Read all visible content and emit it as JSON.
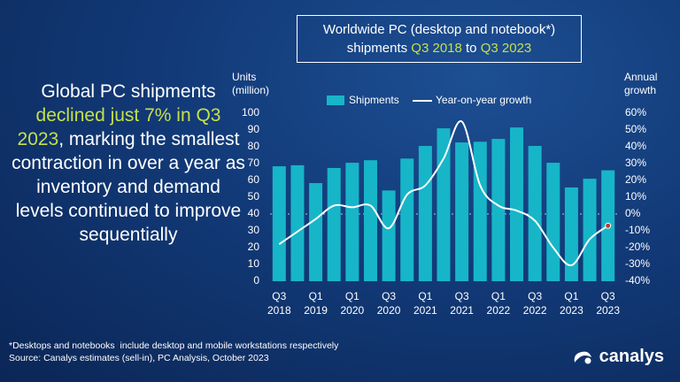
{
  "headline": {
    "parts": [
      "Global PC shipments ",
      "declined just 7% in Q3 2023",
      ", marking the smallest contraction in over a year as inventory and demand levels continued to improve sequentially"
    ]
  },
  "title_box": {
    "line1": "Worldwide PC (desktop and notebook*)",
    "line2_parts": [
      "shipments ",
      "Q3 2018",
      " to ",
      "Q3 2023"
    ]
  },
  "chart_data": {
    "type": "bar",
    "y_label": "Units\n(million)",
    "y2_label": "Annual\ngrowth",
    "categories": [
      "Q3\n2018",
      null,
      "Q1\n2019",
      null,
      "Q1\n2020",
      null,
      "Q3\n2020",
      null,
      "Q1\n2021",
      null,
      "Q3\n2021",
      null,
      "Q1\n2022",
      null,
      "Q3\n2022",
      null,
      "Q1\n2023",
      null,
      "Q3\n2023"
    ],
    "series": [
      {
        "name": "Shipments",
        "color": "#17b5c8",
        "values": [
          68.4,
          69,
          58.4,
          67.4,
          70.5,
          72,
          54,
          73,
          80.5,
          91,
          82.6,
          83,
          84.7,
          91.5,
          80.5,
          70.5,
          55.8,
          61,
          66
        ]
      },
      {
        "name": "Year-on-year growth",
        "type": "line",
        "axis": "y2",
        "color": "#ffffff",
        "values": [
          -18,
          -10.5,
          -3,
          5,
          4,
          5,
          -8.5,
          11.5,
          17,
          33,
          55,
          17,
          5,
          2,
          -4,
          -20,
          -30.5,
          -15,
          -7
        ]
      }
    ],
    "ylim": [
      0,
      100
    ],
    "yticks": [
      0,
      10,
      20,
      30,
      40,
      50,
      60,
      70,
      80,
      90,
      100
    ],
    "y2lim": [
      -40,
      60
    ],
    "y2ticks": [
      {
        "value": -40,
        "label": "-40%"
      },
      {
        "value": -30,
        "label": "-30%"
      },
      {
        "value": -20,
        "label": "-20%"
      },
      {
        "value": -10,
        "label": "-10%"
      },
      {
        "value": 0,
        "label": "0%"
      },
      {
        "value": 10,
        "label": "10%"
      },
      {
        "value": 20,
        "label": "20%"
      },
      {
        "value": 30,
        "label": "30%"
      },
      {
        "value": 40,
        "label": "40%"
      },
      {
        "value": 50,
        "label": "50%"
      },
      {
        "value": 60,
        "label": "60%"
      }
    ]
  },
  "footnote": "*Desktops and notebooks  include desktop and mobile workstations respectively",
  "source": "Source: Canalys estimates (sell-in), PC Analysis, October 2023",
  "logo": "canalys"
}
